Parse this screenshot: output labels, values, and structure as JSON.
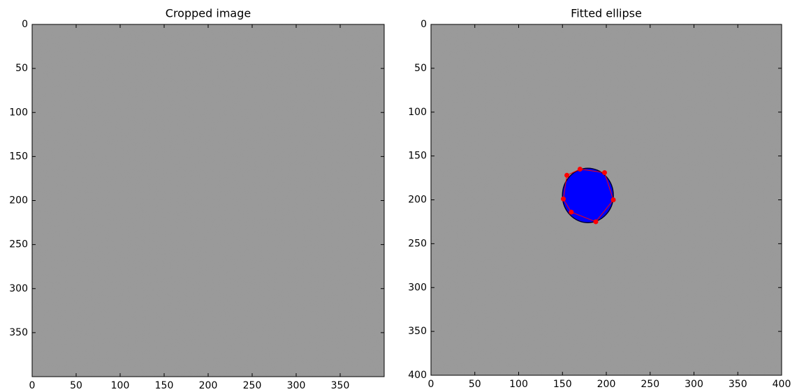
{
  "chart_data": [
    {
      "type": "image",
      "title": "Cropped image",
      "xlim": [
        0,
        400
      ],
      "ylim": [
        400,
        0
      ],
      "xticks": [
        0,
        50,
        100,
        150,
        200,
        250,
        300,
        350
      ],
      "yticks": [
        0,
        50,
        100,
        150,
        200,
        250,
        300,
        350
      ]
    },
    {
      "type": "image",
      "title": "Fitted ellipse",
      "xlim": [
        0,
        400
      ],
      "ylim": [
        400,
        0
      ],
      "xticks": [
        0,
        50,
        100,
        150,
        200,
        250,
        300,
        350,
        400
      ],
      "yticks": [
        0,
        50,
        100,
        150,
        200,
        250,
        300,
        350,
        400
      ],
      "ellipse": {
        "x": 179,
        "y": 195,
        "width": 58,
        "height": 62,
        "color": "#0000ff"
      },
      "points": {
        "x": [
          170,
          198,
          208,
          188,
          160,
          151,
          155
        ],
        "y": [
          165,
          169,
          200,
          225,
          214,
          199,
          172
        ],
        "color": "#ff0000"
      }
    }
  ]
}
